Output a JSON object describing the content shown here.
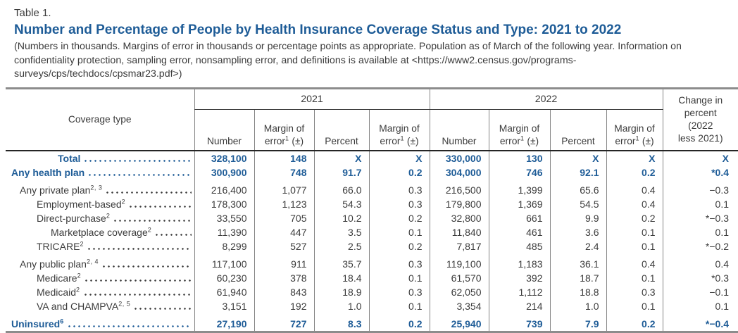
{
  "table_label": "Table 1.",
  "title": "Number and Percentage of People by Health Insurance Coverage Status and Type: 2021 to 2022",
  "note": "(Numbers in thousands. Margins of error in thousands or percentage points as appropriate. Population as of March of the following year. Information on confidentiality protection, sampling error, nonsampling error, and definitions is available at <https://www2.census.gov/programs-surveys/cps/techdocs/cpsmar23.pdf>)",
  "header": {
    "stub": "Coverage type",
    "group_2021": "2021",
    "group_2022": "2022",
    "number": "Number",
    "percent": "Percent",
    "margin": {
      "line1": "Margin of",
      "word": "error",
      "sup": "1",
      "pm": "(±)"
    },
    "change_lines": [
      "Change in",
      "percent",
      "(2022",
      "less 2021)"
    ]
  },
  "colors": {
    "accent_blue": "#1E5C97",
    "body_text": "#3B3B3B",
    "rule_gray": "#848484",
    "heavy_rule": "#252525",
    "outer_rule": "#8C8C8C"
  },
  "rows": [
    {
      "id": "total",
      "label": "Total",
      "sup": "",
      "indent": "total",
      "bold": true,
      "gap": false,
      "n21": "328,100",
      "moe21": "148",
      "p21": "X",
      "pmoe21": "X",
      "n22": "330,000",
      "moe22": "130",
      "p22": "X",
      "pmoe22": "X",
      "chg": "X"
    },
    {
      "id": "any-health-plan",
      "label": "Any health plan",
      "sup": "",
      "indent": "0",
      "bold": true,
      "gap": false,
      "n21": "300,900",
      "moe21": "748",
      "p21": "91.7",
      "pmoe21": "0.2",
      "n22": "304,000",
      "moe22": "746",
      "p22": "92.1",
      "pmoe22": "0.2",
      "chg": "*0.4"
    },
    {
      "id": "any-private-plan",
      "label": "Any private plan",
      "sup": "2, 3",
      "indent": "1",
      "bold": false,
      "gap": true,
      "n21": "216,400",
      "moe21": "1,077",
      "p21": "66.0",
      "pmoe21": "0.3",
      "n22": "216,500",
      "moe22": "1,399",
      "p22": "65.6",
      "pmoe22": "0.4",
      "chg": "−0.3"
    },
    {
      "id": "employment-based",
      "label": "Employment-based",
      "sup": "2",
      "indent": "2",
      "bold": false,
      "gap": false,
      "n21": "178,300",
      "moe21": "1,123",
      "p21": "54.3",
      "pmoe21": "0.3",
      "n22": "179,800",
      "moe22": "1,369",
      "p22": "54.5",
      "pmoe22": "0.4",
      "chg": "0.1"
    },
    {
      "id": "direct-purchase",
      "label": "Direct-purchase",
      "sup": "2",
      "indent": "2",
      "bold": false,
      "gap": false,
      "n21": "33,550",
      "moe21": "705",
      "p21": "10.2",
      "pmoe21": "0.2",
      "n22": "32,800",
      "moe22": "661",
      "p22": "9.9",
      "pmoe22": "0.2",
      "chg": "*−0.3"
    },
    {
      "id": "marketplace-coverage",
      "label": "Marketplace coverage",
      "sup": "2",
      "indent": "3",
      "bold": false,
      "gap": false,
      "n21": "11,390",
      "moe21": "447",
      "p21": "3.5",
      "pmoe21": "0.1",
      "n22": "11,840",
      "moe22": "461",
      "p22": "3.6",
      "pmoe22": "0.1",
      "chg": "0.1"
    },
    {
      "id": "tricare",
      "label": "TRICARE",
      "sup": "2",
      "indent": "2",
      "bold": false,
      "gap": false,
      "n21": "8,299",
      "moe21": "527",
      "p21": "2.5",
      "pmoe21": "0.2",
      "n22": "7,817",
      "moe22": "485",
      "p22": "2.4",
      "pmoe22": "0.1",
      "chg": "*−0.2"
    },
    {
      "id": "any-public-plan",
      "label": "Any public plan",
      "sup": "2, 4",
      "indent": "1",
      "bold": false,
      "gap": true,
      "n21": "117,100",
      "moe21": "911",
      "p21": "35.7",
      "pmoe21": "0.3",
      "n22": "119,100",
      "moe22": "1,183",
      "p22": "36.1",
      "pmoe22": "0.4",
      "chg": "0.4"
    },
    {
      "id": "medicare",
      "label": "Medicare",
      "sup": "2",
      "indent": "2",
      "bold": false,
      "gap": false,
      "n21": "60,230",
      "moe21": "378",
      "p21": "18.4",
      "pmoe21": "0.1",
      "n22": "61,570",
      "moe22": "392",
      "p22": "18.7",
      "pmoe22": "0.1",
      "chg": "*0.3"
    },
    {
      "id": "medicaid",
      "label": "Medicaid",
      "sup": "2",
      "indent": "2",
      "bold": false,
      "gap": false,
      "n21": "61,940",
      "moe21": "843",
      "p21": "18.9",
      "pmoe21": "0.3",
      "n22": "62,050",
      "moe22": "1,112",
      "p22": "18.8",
      "pmoe22": "0.3",
      "chg": "−0.1"
    },
    {
      "id": "va-and-champva",
      "label": "VA and CHAMPVA",
      "sup": "2, 5",
      "indent": "2",
      "bold": false,
      "gap": false,
      "n21": "3,151",
      "moe21": "192",
      "p21": "1.0",
      "pmoe21": "0.1",
      "n22": "3,354",
      "moe22": "214",
      "p22": "1.0",
      "pmoe22": "0.1",
      "chg": "0.1"
    },
    {
      "id": "uninsured",
      "label": "Uninsured",
      "sup": "6",
      "indent": "0",
      "bold": true,
      "gap": true,
      "n21": "27,190",
      "moe21": "727",
      "p21": "8.3",
      "pmoe21": "0.2",
      "n22": "25,940",
      "moe22": "739",
      "p22": "7.9",
      "pmoe22": "0.2",
      "chg": "*−0.4"
    }
  ]
}
